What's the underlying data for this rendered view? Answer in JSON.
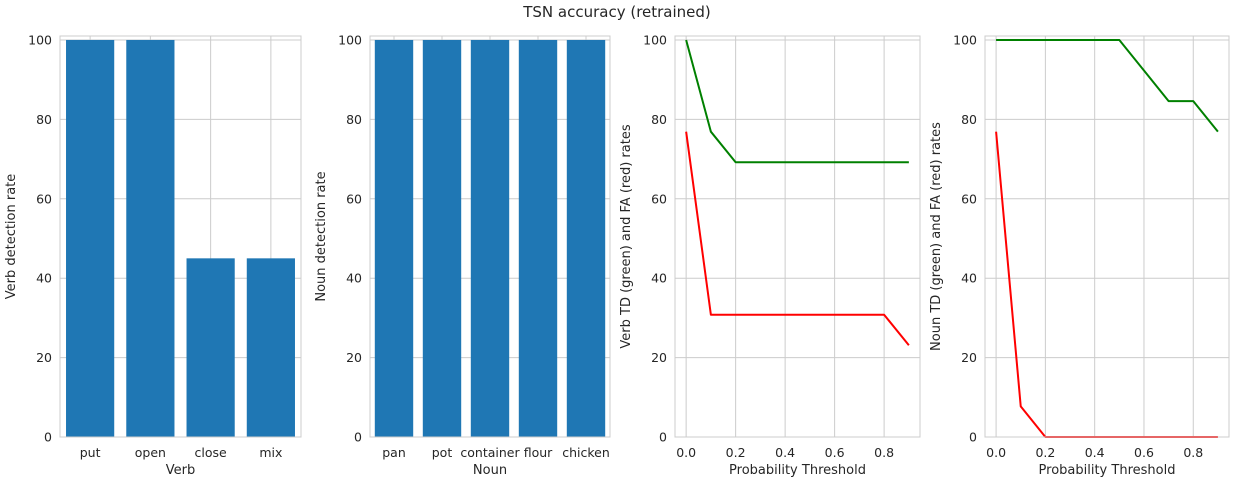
{
  "figure_title": "TSN accuracy (retrained)",
  "chart_data": [
    {
      "type": "bar",
      "title": "",
      "xlabel": "Verb",
      "ylabel": "Verb detection rate",
      "categories": [
        "put",
        "open",
        "close",
        "mix"
      ],
      "values": [
        100,
        100,
        45,
        45
      ],
      "ylim": [
        0,
        101
      ],
      "yticks": [
        0,
        20,
        40,
        60,
        80,
        100
      ],
      "grid": true,
      "color": "#1f77b4"
    },
    {
      "type": "bar",
      "title": "",
      "xlabel": "Noun",
      "ylabel": "Noun detection rate",
      "categories": [
        "pan",
        "pot",
        "container",
        "flour",
        "chicken"
      ],
      "values": [
        100,
        100,
        100,
        100,
        100
      ],
      "ylim": [
        0,
        101
      ],
      "yticks": [
        0,
        20,
        40,
        60,
        80,
        100
      ],
      "grid": true,
      "color": "#1f77b4"
    },
    {
      "type": "line",
      "title": "",
      "xlabel": "Probability Threshold",
      "ylabel": "Verb TD (green) and FA (red) rates",
      "x": [
        0.0,
        0.1,
        0.2,
        0.3,
        0.4,
        0.5,
        0.6,
        0.7,
        0.8,
        0.9
      ],
      "series": [
        {
          "color": "#008000",
          "values": [
            100,
            76.9,
            69.2,
            69.2,
            69.2,
            69.2,
            69.2,
            69.2,
            69.2,
            69.2
          ]
        },
        {
          "color": "#ff0000",
          "values": [
            76.9,
            30.8,
            30.8,
            30.8,
            30.8,
            30.8,
            30.8,
            30.8,
            30.8,
            23.1
          ]
        }
      ],
      "xlim": [
        -0.045,
        0.945
      ],
      "ylim": [
        0,
        101
      ],
      "xticks": [
        0.0,
        0.2,
        0.4,
        0.6,
        0.8
      ],
      "xtick_labels": [
        "0.0",
        "0.2",
        "0.4",
        "0.6",
        "0.8"
      ],
      "yticks": [
        0,
        20,
        40,
        60,
        80,
        100
      ],
      "grid": true
    },
    {
      "type": "line",
      "title": "",
      "xlabel": "Probability Threshold",
      "ylabel": "Noun TD (green) and FA (red) rates",
      "x": [
        0.0,
        0.1,
        0.2,
        0.3,
        0.4,
        0.5,
        0.6,
        0.7,
        0.8,
        0.9
      ],
      "series": [
        {
          "color": "#008000",
          "values": [
            100,
            100,
            100,
            100,
            100,
            100,
            92.3,
            84.6,
            84.6,
            76.9
          ]
        },
        {
          "color": "#ff0000",
          "values": [
            76.9,
            7.7,
            0,
            0,
            0,
            0,
            0,
            0,
            0,
            0
          ]
        }
      ],
      "xlim": [
        -0.045,
        0.945
      ],
      "ylim": [
        0,
        101
      ],
      "xticks": [
        0.0,
        0.2,
        0.4,
        0.6,
        0.8
      ],
      "xtick_labels": [
        "0.0",
        "0.2",
        "0.4",
        "0.6",
        "0.8"
      ],
      "yticks": [
        0,
        20,
        40,
        60,
        80,
        100
      ],
      "grid": true
    }
  ]
}
